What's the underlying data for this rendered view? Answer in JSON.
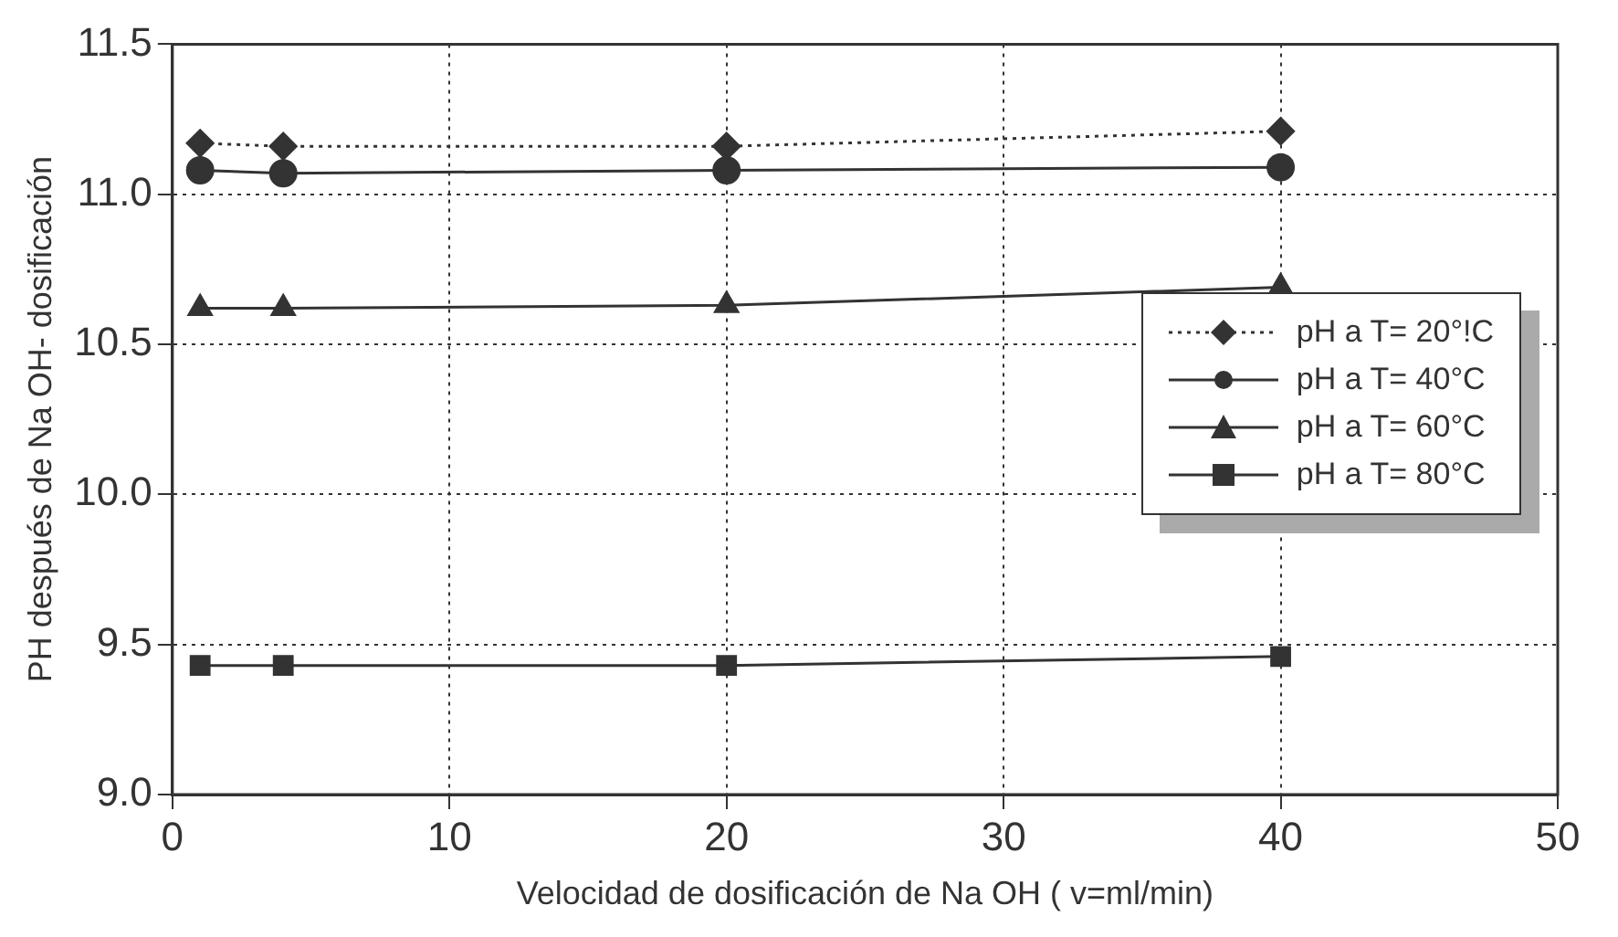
{
  "chart_data": {
    "type": "line",
    "xlabel": "Velocidad de dosificación de Na OH ( v=ml/min)",
    "ylabel": "PH después de Na OH- dosificación",
    "x": [
      1,
      4,
      20,
      40
    ],
    "xlim": [
      0,
      50
    ],
    "xticks": [
      0,
      10,
      20,
      30,
      40,
      50
    ],
    "ylim": [
      9.0,
      11.5
    ],
    "yticks": [
      {
        "value": 9.0,
        "label": "9.0"
      },
      9.5,
      {
        "value": 10.0,
        "label": "10.0"
      },
      10.5,
      {
        "value": 11.0,
        "label": "11.0"
      },
      11.5
    ],
    "grid": true,
    "legend": "right",
    "series": [
      {
        "name": "pH a T= 20°!C",
        "color": "#333333",
        "values": [
          11.17,
          11.16,
          11.16,
          11.21
        ],
        "marker": "diamond",
        "line_style": "dotted"
      },
      {
        "name": "pH a T= 40°C",
        "color": "#333333",
        "values": [
          11.08,
          11.07,
          11.08,
          11.09
        ],
        "marker": "circle",
        "line_style": "solid"
      },
      {
        "name": "pH a T= 60°C",
        "color": "#333333",
        "values": [
          10.62,
          10.62,
          10.63,
          10.69
        ],
        "marker": "triangle",
        "line_style": "solid"
      },
      {
        "name": "pH a T= 80°C",
        "color": "#333333",
        "values": [
          9.43,
          9.43,
          9.43,
          9.46
        ],
        "marker": "square",
        "line_style": "solid"
      }
    ]
  }
}
